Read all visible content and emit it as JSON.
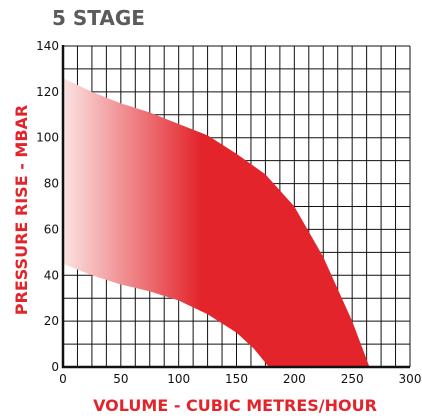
{
  "chart_data": {
    "type": "area",
    "title": "5 STAGE",
    "xlabel": "VOLUME - CUBIC METRES/HOUR",
    "ylabel": "PRESSURE RISE - MBAR",
    "xlim": [
      0,
      300
    ],
    "ylim": [
      0,
      140
    ],
    "x_ticks": [
      "0",
      "50",
      "100",
      "150",
      "200",
      "250",
      "300"
    ],
    "y_ticks": [
      "0",
      "20",
      "40",
      "60",
      "80",
      "100",
      "120",
      "140"
    ],
    "grid": true,
    "band": {
      "upper": [
        [
          0,
          126
        ],
        [
          25,
          120
        ],
        [
          50,
          115
        ],
        [
          75,
          111
        ],
        [
          100,
          106
        ],
        [
          125,
          101
        ],
        [
          150,
          93
        ],
        [
          175,
          84
        ],
        [
          200,
          70
        ],
        [
          225,
          48
        ],
        [
          250,
          20
        ],
        [
          265,
          0
        ]
      ],
      "lower": [
        [
          0,
          45
        ],
        [
          25,
          40
        ],
        [
          50,
          36
        ],
        [
          75,
          33
        ],
        [
          100,
          29
        ],
        [
          125,
          23
        ],
        [
          150,
          15
        ],
        [
          165,
          8
        ],
        [
          178,
          0
        ]
      ]
    },
    "colors": {
      "fill_start": "#fbe3e3",
      "fill_end": "#e3242b",
      "label": "#e3242b",
      "title": "#5b5b5b",
      "grid": "#111111"
    }
  }
}
